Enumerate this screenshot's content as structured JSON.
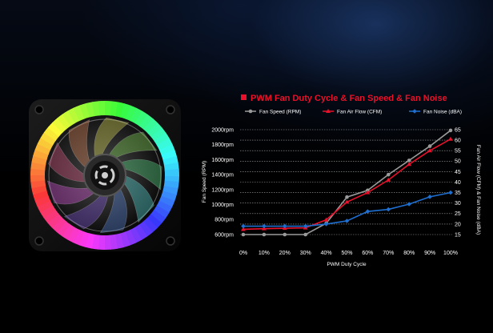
{
  "colors": {
    "title": "#e8102a",
    "rpm": "#9a9a9a",
    "cfm": "#e8102a",
    "dba": "#1e6fd0",
    "text": "#ffffff",
    "grid": "#bfbfbf"
  },
  "chart_data": {
    "type": "line",
    "title": "PWM Fan Duty Cycle & Fan Speed & Fan Noise",
    "xlabel": "PWM Duty Cycle",
    "ylabel_left": "Fan Speed (RPM)",
    "ylabel_right": "Fan Air Flow (CFM) & Fan Noise (dBA)",
    "categories": [
      "0%",
      "10%",
      "20%",
      "30%",
      "40%",
      "50%",
      "60%",
      "70%",
      "80%",
      "90%",
      "100%"
    ],
    "ylim_left": [
      600,
      2000
    ],
    "ylim_right": [
      15,
      65
    ],
    "yticks_left": [
      "600rpm",
      "800rpm",
      "1000rpm",
      "1200rpm",
      "1400rpm",
      "1600rpm",
      "1800rpm",
      "2000rpm"
    ],
    "yticks_right": [
      "15",
      "20",
      "25",
      "30",
      "35",
      "40",
      "45",
      "50",
      "55",
      "60",
      "65"
    ],
    "grid": true,
    "legend_position": "top",
    "series": [
      {
        "name": "Fan Speed (RPM)",
        "axis": "left",
        "marker": "circle",
        "values": [
          600,
          600,
          600,
          600,
          750,
          1100,
          1190,
          1400,
          1590,
          1780,
          1990
        ]
      },
      {
        "name": "Fan Air Flow (CFM)",
        "axis": "right",
        "marker": "triangle",
        "values": [
          17.5,
          17.8,
          18,
          18.2,
          22,
          30.5,
          35,
          41,
          48.5,
          55,
          60.5
        ]
      },
      {
        "name": "Fan Noise (dBA)",
        "axis": "right",
        "marker": "diamond",
        "values": [
          19,
          19,
          19,
          19,
          20,
          21.5,
          26,
          27,
          29.5,
          33,
          35
        ]
      }
    ]
  }
}
